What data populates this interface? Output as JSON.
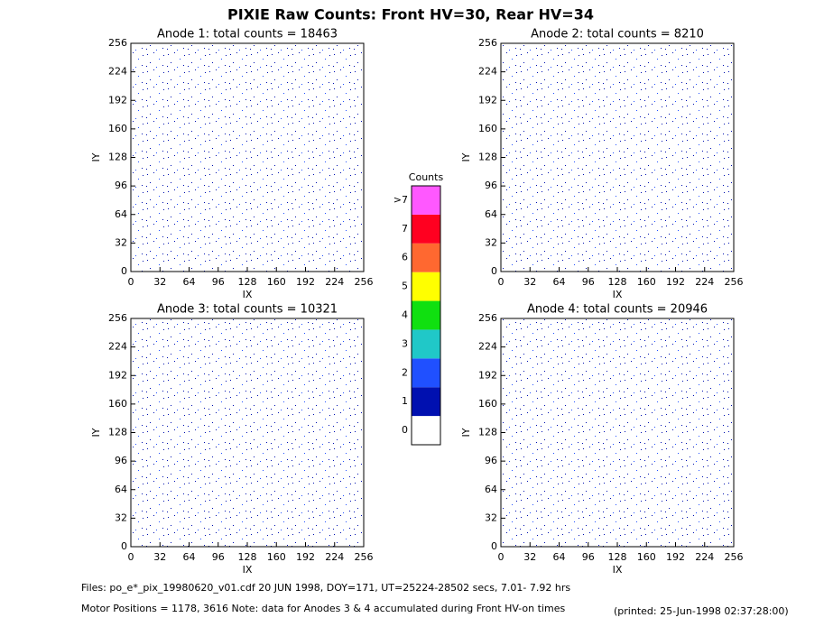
{
  "header": {
    "title": "PIXIE Raw Counts:  Front HV=30, Rear HV=34"
  },
  "chart_data": [
    {
      "type": "heatmap",
      "title": "Anode 1: total counts = 18463",
      "xlabel": "IX",
      "ylabel": "IY",
      "xlim": [
        0,
        256
      ],
      "xticks": [
        0,
        32,
        64,
        96,
        128,
        160,
        192,
        224,
        256
      ],
      "ylim": [
        0,
        256
      ],
      "yticks": [
        0,
        32,
        64,
        96,
        128,
        160,
        192,
        224,
        256
      ]
    },
    {
      "type": "heatmap",
      "title": "Anode 2: total counts = 8210",
      "xlabel": "IX",
      "ylabel": "IY",
      "xlim": [
        0,
        256
      ],
      "xticks": [
        0,
        32,
        64,
        96,
        128,
        160,
        192,
        224,
        256
      ],
      "ylim": [
        0,
        256
      ],
      "yticks": [
        0,
        32,
        64,
        96,
        128,
        160,
        192,
        224,
        256
      ]
    },
    {
      "type": "heatmap",
      "title": "Anode 3: total counts = 10321",
      "xlabel": "IX",
      "ylabel": "IY",
      "xlim": [
        0,
        256
      ],
      "xticks": [
        0,
        32,
        64,
        96,
        128,
        160,
        192,
        224,
        256
      ],
      "ylim": [
        0,
        256
      ],
      "yticks": [
        0,
        32,
        64,
        96,
        128,
        160,
        192,
        224,
        256
      ]
    },
    {
      "type": "heatmap",
      "title": "Anode 4: total counts = 20946",
      "xlabel": "IX",
      "ylabel": "IY",
      "xlim": [
        0,
        256
      ],
      "xticks": [
        0,
        32,
        64,
        96,
        128,
        160,
        192,
        224,
        256
      ],
      "ylim": [
        0,
        256
      ],
      "yticks": [
        0,
        32,
        64,
        96,
        128,
        160,
        192,
        224,
        256
      ]
    }
  ],
  "colorbar": {
    "title": "Counts",
    "levels": [
      0,
      1,
      2,
      3,
      4,
      5,
      6,
      7,
      {
        "value": 8,
        "label": ">7"
      }
    ],
    "colors": [
      "#ffffff",
      "#0010b0",
      "#2050ff",
      "#20c8c8",
      "#10e010",
      "#ffff00",
      "#ff6830",
      "#ff0020",
      "#ff58ff"
    ]
  },
  "footer": {
    "files": "Files: po_e*_pix_19980620_v01.cdf    20 JUN 1998, DOY=171, UT=25224-28502 secs,  7.01- 7.92 hrs",
    "motor": "Motor Positions = 1178, 3616   Note: data for Anodes 3 & 4 accumulated during Front HV-on times",
    "printed": "(printed: 25-Jun-1998 02:37:28:00)"
  }
}
